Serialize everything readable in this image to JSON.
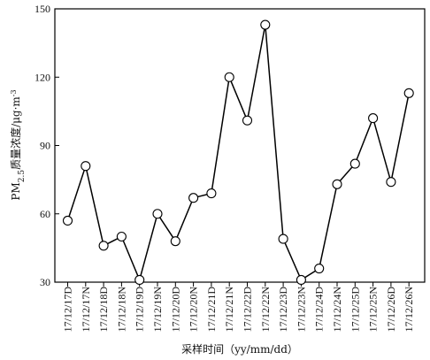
{
  "chart_data": {
    "type": "line",
    "title": "",
    "xlabel": "采样时间（yy/mm/dd）",
    "ylabel": {
      "prefix": "PM",
      "subscript": "2.5",
      "suffix": "质量浓度/μg·m",
      "superscript": "-3"
    },
    "ylim": [
      30,
      150
    ],
    "yticks": [
      "30",
      "60",
      "90",
      "120",
      "150"
    ],
    "categories": [
      "17/12/17D",
      "17/12/17N",
      "17/12/18D",
      "17/12/18N",
      "17/12/19D",
      "17/12/19N",
      "17/12/20D",
      "17/12/20N",
      "17/12/21D",
      "17/12/21N",
      "17/12/22D",
      "17/12/22N",
      "17/12/23D",
      "17/12/23N",
      "17/12/24D",
      "17/12/24N",
      "17/12/25D",
      "17/12/25N",
      "17/12/26D",
      "17/12/26N"
    ],
    "series": [
      {
        "values": [
          57,
          81,
          46,
          50,
          31,
          60,
          48,
          67,
          69,
          120,
          101,
          143,
          49,
          31,
          36,
          73,
          82,
          102,
          74,
          113
        ],
        "marker": "open-circle",
        "color": "#000000"
      }
    ],
    "grid": false
  }
}
